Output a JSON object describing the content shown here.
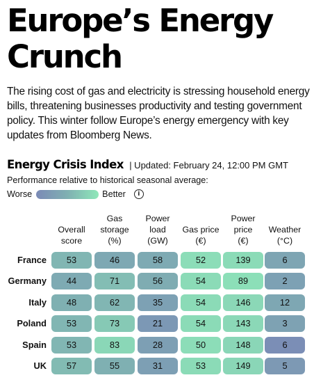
{
  "title": "Europe’s Energy Crunch",
  "intro": "The rising cost of gas and electricity is stressing household energy bills, threatening businesses productivity and testing government policy. This winter follow Europe’s energy emergency with key updates from Bloomberg News.",
  "index": {
    "title": "Energy Crisis Index",
    "updated": "| Updated: February 24, 12:00 PM GMT",
    "subtitle": "Performance relative to historical seasonal average:",
    "legend_worse": "Worse",
    "legend_better": "Better",
    "info_icon": "info-icon"
  },
  "colors": {
    "worse": "#7b8ab6",
    "mid": "#7fb0b2",
    "better": "#8fe8b9"
  },
  "table": {
    "columns": [
      [
        "Overall",
        "score"
      ],
      [
        "Gas",
        "storage",
        "(%)"
      ],
      [
        "Power",
        "load",
        "(GW)"
      ],
      [
        "Gas price",
        "(€)"
      ],
      [
        "Power",
        "price",
        "(€)"
      ],
      [
        "Weather",
        "(°C)"
      ]
    ],
    "rows": [
      {
        "country": "France",
        "values": [
          "53",
          "46",
          "58",
          "52",
          "139",
          "6"
        ],
        "scores": [
          0.55,
          0.4,
          0.42,
          0.9,
          0.88,
          0.35
        ]
      },
      {
        "country": "Germany",
        "values": [
          "44",
          "71",
          "56",
          "54",
          "89",
          "2"
        ],
        "scores": [
          0.42,
          0.62,
          0.45,
          0.88,
          0.92,
          0.3
        ]
      },
      {
        "country": "Italy",
        "values": [
          "48",
          "62",
          "35",
          "54",
          "146",
          "12"
        ],
        "scores": [
          0.5,
          0.55,
          0.3,
          0.88,
          0.86,
          0.38
        ]
      },
      {
        "country": "Poland",
        "values": [
          "53",
          "73",
          "21",
          "54",
          "143",
          "3"
        ],
        "scores": [
          0.55,
          0.72,
          0.18,
          0.88,
          0.86,
          0.32
        ]
      },
      {
        "country": "Spain",
        "values": [
          "53",
          "83",
          "28",
          "50",
          "148",
          "6"
        ],
        "scores": [
          0.55,
          0.85,
          0.28,
          0.9,
          0.84,
          0.05
        ]
      },
      {
        "country": "UK",
        "values": [
          "57",
          "55",
          "31",
          "53",
          "149",
          "5"
        ],
        "scores": [
          0.6,
          0.5,
          0.28,
          0.88,
          0.84,
          0.2
        ]
      }
    ]
  }
}
